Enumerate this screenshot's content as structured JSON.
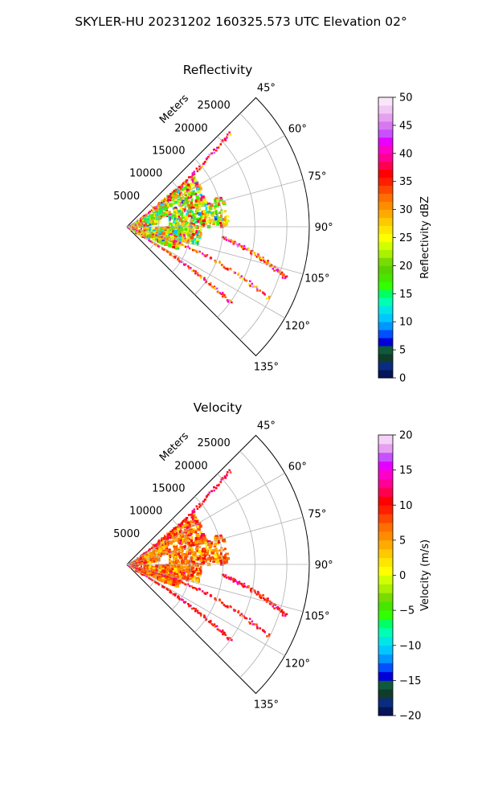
{
  "figure_title": "SKYLER-HU  20231202  160325.573 UTC Elevation 02°",
  "chart_data": [
    {
      "type": "polar-sector",
      "title": "Reflectivity",
      "range_label": "Meters",
      "range_ticks": [
        5000,
        10000,
        15000,
        20000,
        25000
      ],
      "azimuth_ticks": [
        "45°",
        "60°",
        "75°",
        "90°",
        "105°",
        "120°",
        "135°"
      ],
      "azimuth_range_deg": [
        45,
        135
      ],
      "grid": true,
      "colorbar": {
        "label": "Reflectivity dBZ",
        "min": 0,
        "max": 50,
        "ticks": [
          0,
          5,
          10,
          15,
          20,
          25,
          30,
          35,
          40,
          45,
          50
        ],
        "palette": [
          "#06145a",
          "#0a2c80",
          "#103c2c",
          "#0e5a3a",
          "#0000d8",
          "#0050ff",
          "#0096ff",
          "#00c8ff",
          "#00e6e6",
          "#00ffb4",
          "#00ff64",
          "#32ff00",
          "#46e600",
          "#5ad200",
          "#78dc00",
          "#aaf000",
          "#d2ff00",
          "#ffff00",
          "#ffe600",
          "#ffc800",
          "#ffaa00",
          "#ff8c00",
          "#ff6e00",
          "#ff4600",
          "#ff1e00",
          "#ff0000",
          "#ff0050",
          "#ff0096",
          "#ff00c8",
          "#e600ff",
          "#c850ff",
          "#d878f0",
          "#e6a0f0",
          "#f0c8f5",
          "#fae6fa"
        ]
      }
    },
    {
      "type": "polar-sector",
      "title": "Velocity",
      "range_label": "Meters",
      "range_ticks": [
        5000,
        10000,
        15000,
        20000,
        25000
      ],
      "azimuth_ticks": [
        "45°",
        "60°",
        "75°",
        "90°",
        "105°",
        "120°",
        "135°"
      ],
      "azimuth_range_deg": [
        45,
        135
      ],
      "grid": true,
      "colorbar": {
        "label": "Velocity (m/s)",
        "min": -20,
        "max": 20,
        "ticks": [
          -20,
          -15,
          -10,
          -5,
          0,
          5,
          10,
          15,
          20
        ],
        "palette": [
          "#06145a",
          "#0a2c80",
          "#103c2c",
          "#0e5a3a",
          "#0000d8",
          "#0050ff",
          "#0096ff",
          "#00c8ff",
          "#00e6e6",
          "#00ffb4",
          "#00ff64",
          "#32ff00",
          "#46e600",
          "#78dc00",
          "#aaf000",
          "#d2ff00",
          "#ffff00",
          "#ffe600",
          "#ffc800",
          "#ffaa00",
          "#ff8c00",
          "#ff6e00",
          "#ff4600",
          "#ff1e00",
          "#ff0000",
          "#ff0050",
          "#ff0096",
          "#ff00c8",
          "#e600ff",
          "#c850ff",
          "#e6a0f0",
          "#f5d2f8"
        ]
      }
    }
  ]
}
